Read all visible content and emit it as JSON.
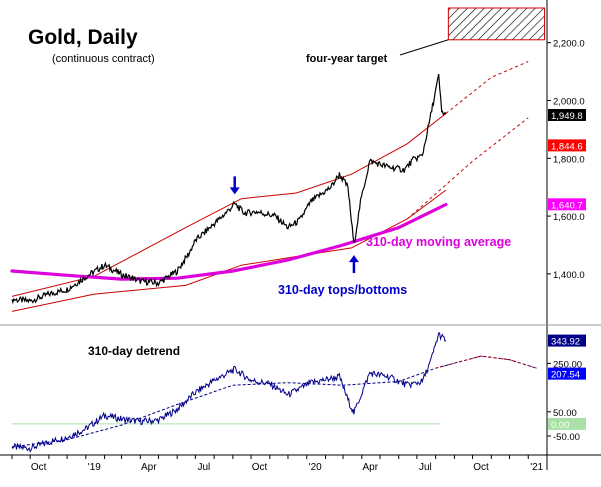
{
  "chart_data": [
    {
      "type": "line",
      "title": "Gold, Daily",
      "subtitle": "(continuous contract)",
      "y_axis": {
        "ticks": [
          1400,
          1600,
          1800,
          2000,
          2200
        ],
        "tick_labels": [
          "1,400.0",
          "1,600.0",
          "1,800.0",
          "2,000.0",
          "2,200.0"
        ],
        "ylim": [
          1230,
          2320
        ],
        "side": "right"
      },
      "x_axis": {
        "tick_labels": [
          "Oct",
          "'19",
          "Apr",
          "Jul",
          "Oct",
          "'20",
          "Apr",
          "Jul",
          "Oct",
          "'21"
        ],
        "x_range": [
          "2018-09-01",
          "2021-02-01"
        ]
      },
      "series": [
        {
          "role": "price",
          "color": "#000000",
          "points": [
            [
              "2018-09-01",
              1312
            ],
            [
              "2018-10-01",
              1306
            ],
            [
              "2018-11-01",
              1330
            ],
            [
              "2018-12-01",
              1346
            ],
            [
              "2019-01-01",
              1390
            ],
            [
              "2019-02-01",
              1430
            ],
            [
              "2019-03-01",
              1398
            ],
            [
              "2019-04-01",
              1375
            ],
            [
              "2019-05-01",
              1368
            ],
            [
              "2019-06-01",
              1410
            ],
            [
              "2019-06-20",
              1470
            ],
            [
              "2019-07-01",
              1515
            ],
            [
              "2019-07-25",
              1560
            ],
            [
              "2019-08-15",
              1600
            ],
            [
              "2019-09-04",
              1642
            ],
            [
              "2019-09-20",
              1610
            ],
            [
              "2019-10-10",
              1615
            ],
            [
              "2019-11-10",
              1600
            ],
            [
              "2019-12-01",
              1560
            ],
            [
              "2019-12-20",
              1585
            ],
            [
              "2020-01-08",
              1650
            ],
            [
              "2020-02-10",
              1700
            ],
            [
              "2020-02-24",
              1745
            ],
            [
              "2020-03-09",
              1700
            ],
            [
              "2020-03-19",
              1500
            ],
            [
              "2020-03-30",
              1650
            ],
            [
              "2020-04-14",
              1790
            ],
            [
              "2020-05-15",
              1770
            ],
            [
              "2020-06-10",
              1760
            ],
            [
              "2020-06-25",
              1795
            ],
            [
              "2020-07-10",
              1810
            ],
            [
              "2020-07-24",
              1950
            ],
            [
              "2020-08-06",
              2085
            ],
            [
              "2020-08-11",
              1960
            ],
            [
              "2020-08-18",
              1952
            ]
          ]
        }
      ],
      "moving_average": {
        "name": "310-day moving average",
        "color": "#dd00dd",
        "value_label": "1,640.7",
        "points": [
          [
            "2018-09-01",
            1410
          ],
          [
            "2018-12-01",
            1395
          ],
          [
            "2019-03-01",
            1382
          ],
          [
            "2019-06-01",
            1385
          ],
          [
            "2019-09-01",
            1410
          ],
          [
            "2019-12-01",
            1448
          ],
          [
            "2020-03-01",
            1500
          ],
          [
            "2020-06-01",
            1560
          ],
          [
            "2020-08-18",
            1640
          ]
        ]
      },
      "envelope": {
        "name": "310-day tops/bottoms",
        "color": "#cc0000",
        "upper": [
          [
            "2018-09-01",
            1322
          ],
          [
            "2019-01-15",
            1392
          ],
          [
            "2019-06-15",
            1560
          ],
          [
            "2019-09-15",
            1660
          ],
          [
            "2019-12-15",
            1680
          ],
          [
            "2020-03-15",
            1745
          ],
          [
            "2020-06-15",
            1850
          ],
          [
            "2020-08-18",
            1955
          ]
        ],
        "lower": [
          [
            "2018-09-01",
            1270
          ],
          [
            "2019-01-15",
            1330
          ],
          [
            "2019-06-15",
            1360
          ],
          [
            "2019-09-15",
            1430
          ],
          [
            "2019-12-15",
            1460
          ],
          [
            "2020-03-15",
            1490
          ],
          [
            "2020-06-15",
            1590
          ],
          [
            "2020-08-18",
            1690
          ]
        ],
        "upper_projection": [
          [
            "2020-08-18",
            1955
          ],
          [
            "2020-11-01",
            2080
          ],
          [
            "2021-01-01",
            2135
          ]
        ],
        "lower_projection": [
          [
            "2020-06-15",
            1590
          ],
          [
            "2020-10-01",
            1790
          ],
          [
            "2021-01-01",
            1940
          ]
        ]
      },
      "price_labels": [
        {
          "text": "1,949.8",
          "value": 1949.8,
          "bg": "#000000",
          "fg": "#ffffff"
        },
        {
          "text": "1,844.6",
          "value": 1844.6,
          "bg": "#ff0000",
          "fg": "#ffffff"
        },
        {
          "text": "1,640.7",
          "value": 1640.7,
          "bg": "#ff00ff",
          "fg": "#ffffff"
        }
      ],
      "target_zone": {
        "label": "four-year target",
        "x": [
          "2020-08-22",
          "2021-01-28"
        ],
        "y": [
          2210,
          2320
        ]
      },
      "annotations": [
        {
          "text": "310-day moving average",
          "color": "#dd00dd"
        },
        {
          "text": "310-day tops/bottoms",
          "color": "#0000cc"
        }
      ],
      "arrows": [
        {
          "direction": "down",
          "date": "2019-09-04",
          "color": "#0000cc"
        },
        {
          "direction": "up",
          "date": "2020-03-19",
          "color": "#0000cc"
        }
      ]
    },
    {
      "type": "line",
      "title": "310-day detrend",
      "y_axis": {
        "ticks": [
          -50,
          50,
          250
        ],
        "tick_labels": [
          "-50.00",
          "50.00",
          "250.00"
        ],
        "ylim": [
          -120,
          400
        ],
        "side": "right"
      },
      "series": [
        {
          "role": "detrend",
          "color": "#000088",
          "points": [
            [
              "2018-09-01",
              -95
            ],
            [
              "2018-10-01",
              -100
            ],
            [
              "2018-11-01",
              -75
            ],
            [
              "2018-12-01",
              -55
            ],
            [
              "2019-01-01",
              -20
            ],
            [
              "2019-02-01",
              35
            ],
            [
              "2019-03-01",
              20
            ],
            [
              "2019-04-01",
              10
            ],
            [
              "2019-05-01",
              15
            ],
            [
              "2019-06-01",
              60
            ],
            [
              "2019-07-01",
              130
            ],
            [
              "2019-08-01",
              180
            ],
            [
              "2019-09-04",
              225
            ],
            [
              "2019-10-01",
              180
            ],
            [
              "2019-11-01",
              165
            ],
            [
              "2019-12-01",
              120
            ],
            [
              "2020-01-08",
              170
            ],
            [
              "2020-02-24",
              195
            ],
            [
              "2020-03-09",
              100
            ],
            [
              "2020-03-19",
              45
            ],
            [
              "2020-03-30",
              115
            ],
            [
              "2020-04-14",
              210
            ],
            [
              "2020-05-15",
              195
            ],
            [
              "2020-06-15",
              160
            ],
            [
              "2020-07-10",
              175
            ],
            [
              "2020-07-24",
              260
            ],
            [
              "2020-08-06",
              370
            ],
            [
              "2020-08-18",
              344
            ]
          ]
        },
        {
          "role": "projection",
          "color": "#cc0000",
          "points": [
            [
              "2018-09-01",
              -95
            ],
            [
              "2018-12-01",
              -65
            ],
            [
              "2019-03-01",
              -5
            ],
            [
              "2019-06-01",
              80
            ],
            [
              "2019-09-01",
              160
            ],
            [
              "2019-12-01",
              170
            ],
            [
              "2020-03-01",
              160
            ],
            [
              "2020-06-01",
              175
            ],
            [
              "2020-08-01",
              230
            ],
            [
              "2020-10-15",
              280
            ],
            [
              "2020-12-01",
              265
            ],
            [
              "2021-01-15",
              230
            ]
          ]
        }
      ],
      "price_labels": [
        {
          "text": "343.92",
          "value": 343.92,
          "bg": "#000088",
          "fg": "#ffffff"
        },
        {
          "text": "207.54",
          "value": 207.54,
          "bg": "#0000ff",
          "fg": "#ffffff"
        },
        {
          "text": "0.00",
          "value": 0,
          "bg": "#a8e0a8",
          "fg": "#ffffff"
        }
      ]
    }
  ]
}
